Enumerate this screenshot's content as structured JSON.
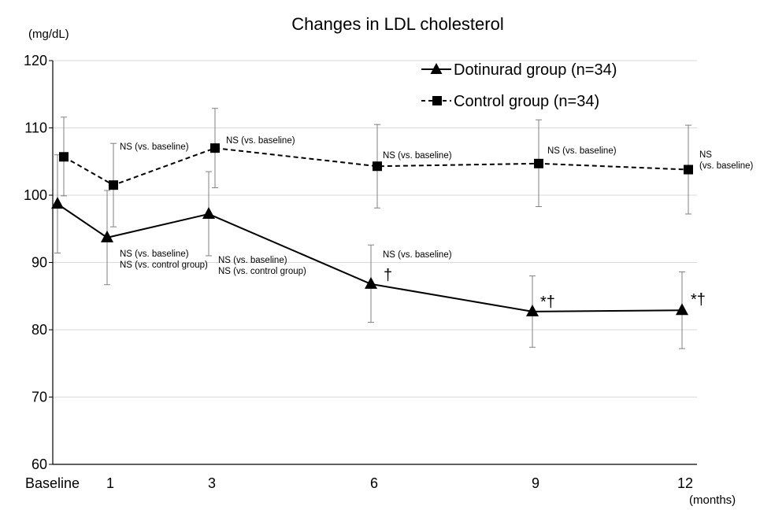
{
  "chart_data": {
    "type": "line",
    "title": "Changes in LDL cholesterol",
    "ylabel": "(mg/dL)",
    "xlabel": "(months)",
    "ylim": [
      60,
      120
    ],
    "yticks": [
      "60",
      "70",
      "80",
      "90",
      "100",
      "110",
      "120"
    ],
    "categories": [
      "Baseline",
      "1",
      "3",
      "6",
      "9",
      "12"
    ],
    "grid": true,
    "legend": "top-right",
    "series": [
      {
        "name": "Dotinurad group (n=34)",
        "marker": "triangle",
        "line": "solid",
        "values": [
          98.7,
          93.7,
          97.2,
          86.8,
          82.7,
          82.9
        ],
        "err_low": [
          91.4,
          86.7,
          91.0,
          81.1,
          77.4,
          77.2
        ],
        "err_high": [
          106.0,
          100.7,
          103.5,
          92.6,
          88.0,
          88.6
        ]
      },
      {
        "name": "Control group (n=34)",
        "marker": "square",
        "line": "dashed",
        "values": [
          105.7,
          101.5,
          107.0,
          104.3,
          104.7,
          103.8
        ],
        "err_low": [
          99.9,
          95.3,
          101.1,
          98.1,
          98.3,
          97.2
        ],
        "err_high": [
          111.6,
          107.7,
          112.9,
          110.5,
          111.2,
          110.4
        ]
      }
    ],
    "annotations": {
      "control": [
        "",
        "NS (vs. baseline)",
        "NS (vs. baseline)",
        "NS (vs. baseline)",
        "NS (vs. baseline)",
        [
          "NS",
          "(vs. baseline)"
        ]
      ],
      "dotinurad": [
        "",
        [
          "NS (vs. baseline)",
          "NS (vs. control group)"
        ],
        [
          "NS (vs. baseline)",
          "NS (vs. control group)"
        ],
        "NS (vs. baseline)",
        "",
        ""
      ],
      "marks": [
        "",
        "",
        "",
        "†",
        "*†",
        "*†"
      ]
    }
  }
}
